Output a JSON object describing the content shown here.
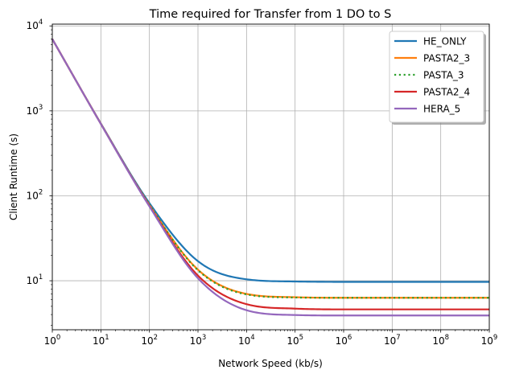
{
  "chart_data": {
    "type": "line",
    "title": "Time required for Transfer from 1 DO to S",
    "xlabel": "Network Speed (kb/s)",
    "ylabel": "Client Runtime (s)",
    "xscale": "log",
    "yscale": "log",
    "xlim": [
      1,
      1000000000
    ],
    "ylim": [
      2.65,
      10500
    ],
    "grid": true,
    "legend_position": "top-right",
    "x_ticks": [
      {
        "value": 1,
        "base": "10",
        "exp": "0"
      },
      {
        "value": 10,
        "base": "10",
        "exp": "1"
      },
      {
        "value": 100,
        "base": "10",
        "exp": "2"
      },
      {
        "value": 1000,
        "base": "10",
        "exp": "3"
      },
      {
        "value": 10000,
        "base": "10",
        "exp": "4"
      },
      {
        "value": 100000,
        "base": "10",
        "exp": "5"
      },
      {
        "value": 1000000,
        "base": "10",
        "exp": "6"
      },
      {
        "value": 10000000,
        "base": "10",
        "exp": "7"
      },
      {
        "value": 100000000,
        "base": "10",
        "exp": "8"
      },
      {
        "value": 1000000000,
        "base": "10",
        "exp": "9"
      }
    ],
    "y_ticks": [
      {
        "value": 10,
        "base": "10",
        "exp": "1"
      },
      {
        "value": 100,
        "base": "10",
        "exp": "2"
      },
      {
        "value": 1000,
        "base": "10",
        "exp": "3"
      },
      {
        "value": 10000,
        "base": "10",
        "exp": "4"
      }
    ],
    "x": [
      1,
      10,
      100,
      1000,
      10000,
      100000,
      1000000,
      10000000,
      100000000,
      1000000000
    ],
    "series": [
      {
        "name": "HE_ONLY",
        "color": "#1f77b4",
        "dash": "solid",
        "values": [
          7000,
          710,
          82,
          17,
          10.4,
          9.8,
          9.7,
          9.7,
          9.7,
          9.7
        ]
      },
      {
        "name": "PASTA2_3",
        "color": "#ff7f0e",
        "dash": "solid",
        "values": [
          7000,
          705,
          78,
          13.5,
          7.0,
          6.4,
          6.3,
          6.3,
          6.3,
          6.3
        ]
      },
      {
        "name": "PASTA_3",
        "color": "#2ca02c",
        "dash": "dotted",
        "values": [
          7000,
          705,
          78,
          13.3,
          6.9,
          6.35,
          6.3,
          6.3,
          6.3,
          6.3
        ]
      },
      {
        "name": "PASTA2_4",
        "color": "#d62728",
        "dash": "solid",
        "values": [
          7000,
          702,
          76,
          11.5,
          5.3,
          4.7,
          4.6,
          4.6,
          4.6,
          4.6
        ]
      },
      {
        "name": "HERA_5",
        "color": "#9467bd",
        "dash": "solid",
        "values": [
          7000,
          700,
          75,
          10.7,
          4.5,
          3.95,
          3.9,
          3.9,
          3.9,
          3.9
        ]
      }
    ]
  }
}
